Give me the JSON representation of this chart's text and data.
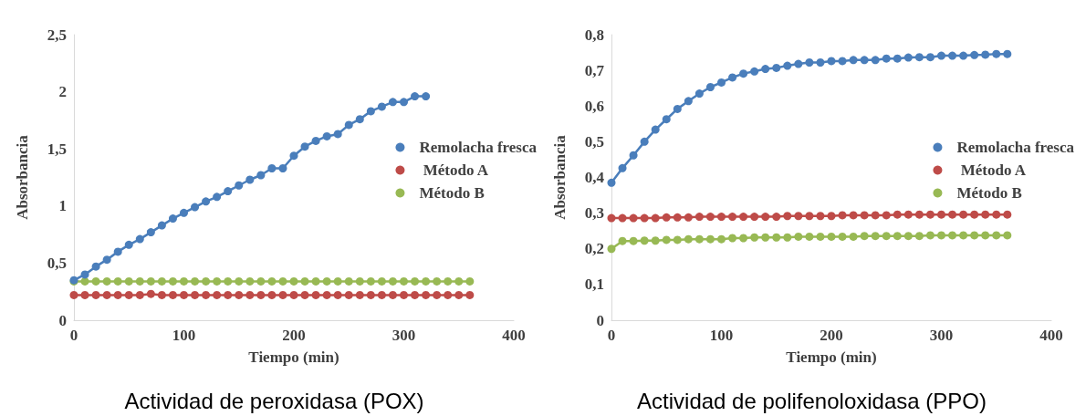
{
  "chart_data": [
    {
      "type": "line",
      "title": "Actividad de peroxidasa (POX)",
      "xlabel": "Tiempo (min)",
      "ylabel": "Absorbancia",
      "x": [
        0,
        10,
        20,
        30,
        40,
        50,
        60,
        70,
        80,
        90,
        100,
        110,
        120,
        130,
        140,
        150,
        160,
        170,
        180,
        190,
        200,
        210,
        220,
        230,
        240,
        250,
        260,
        270,
        280,
        290,
        300,
        310,
        320,
        330,
        340,
        350,
        360
      ],
      "xlim": [
        0,
        400
      ],
      "xticks": [
        0,
        100,
        200,
        300,
        400
      ],
      "ylim": [
        0,
        2.5
      ],
      "yticks": [
        0,
        {
          "value": 0.5,
          "label": "0,5"
        },
        1,
        {
          "value": 1.5,
          "label": "1,5"
        },
        2,
        {
          "value": 2.5,
          "label": "2,5"
        }
      ],
      "grid": false,
      "legend": "right",
      "marker": "circle",
      "line_style": "solid",
      "series": [
        {
          "name": "Remolacha fresca",
          "color": "#4a7ebb",
          "x": [
            0,
            10,
            20,
            30,
            40,
            50,
            60,
            70,
            80,
            90,
            100,
            110,
            120,
            130,
            140,
            150,
            160,
            170,
            180,
            190,
            200,
            210,
            220,
            230,
            240,
            250,
            260,
            270,
            280,
            290,
            300,
            310,
            320
          ],
          "values": [
            0.35,
            0.4,
            0.47,
            0.53,
            0.6,
            0.66,
            0.71,
            0.77,
            0.83,
            0.89,
            0.94,
            0.99,
            1.04,
            1.08,
            1.13,
            1.18,
            1.23,
            1.27,
            1.33,
            1.33,
            1.44,
            1.52,
            1.57,
            1.61,
            1.63,
            1.71,
            1.76,
            1.83,
            1.87,
            1.91,
            1.91,
            1.96,
            1.96
          ]
        },
        {
          "name": " Método A",
          "color": "#be4b48",
          "values": [
            0.22,
            0.22,
            0.22,
            0.22,
            0.22,
            0.22,
            0.22,
            0.23,
            0.22,
            0.22,
            0.22,
            0.22,
            0.22,
            0.22,
            0.22,
            0.22,
            0.22,
            0.22,
            0.22,
            0.22,
            0.22,
            0.22,
            0.22,
            0.22,
            0.22,
            0.22,
            0.22,
            0.22,
            0.22,
            0.22,
            0.22,
            0.22,
            0.22,
            0.22,
            0.22,
            0.22,
            0.22
          ]
        },
        {
          "name": "Método B",
          "color": "#98b954",
          "values": [
            0.34,
            0.34,
            0.34,
            0.34,
            0.34,
            0.34,
            0.34,
            0.34,
            0.34,
            0.34,
            0.34,
            0.34,
            0.34,
            0.34,
            0.34,
            0.34,
            0.34,
            0.34,
            0.34,
            0.34,
            0.34,
            0.34,
            0.34,
            0.34,
            0.34,
            0.34,
            0.34,
            0.34,
            0.34,
            0.34,
            0.34,
            0.34,
            0.34,
            0.34,
            0.34,
            0.34,
            0.34
          ]
        }
      ]
    },
    {
      "type": "line",
      "title": "Actividad de polifenoloxidasa (PPO)",
      "xlabel": "Tiempo (min)",
      "ylabel": "Absorbancia",
      "x": [
        0,
        10,
        20,
        30,
        40,
        50,
        60,
        70,
        80,
        90,
        100,
        110,
        120,
        130,
        140,
        150,
        160,
        170,
        180,
        190,
        200,
        210,
        220,
        230,
        240,
        250,
        260,
        270,
        280,
        290,
        300,
        310,
        320,
        330,
        340,
        350,
        360
      ],
      "xlim": [
        0,
        400
      ],
      "xticks": [
        0,
        100,
        200,
        300,
        400
      ],
      "ylim": [
        0,
        0.8
      ],
      "yticks": [
        0,
        {
          "value": 0.1,
          "label": "0,1"
        },
        {
          "value": 0.2,
          "label": "0,2"
        },
        {
          "value": 0.3,
          "label": "0,3"
        },
        {
          "value": 0.4,
          "label": "0,4"
        },
        {
          "value": 0.5,
          "label": "0,5"
        },
        {
          "value": 0.6,
          "label": "0,6"
        },
        {
          "value": 0.7,
          "label": "0,7"
        },
        {
          "value": 0.8,
          "label": "0,8"
        }
      ],
      "grid": false,
      "legend": "right",
      "marker": "circle",
      "line_style": "solid",
      "series": [
        {
          "name": "Remolacha fresca",
          "color": "#4a7ebb",
          "values": [
            0.385,
            0.426,
            0.462,
            0.5,
            0.534,
            0.563,
            0.592,
            0.614,
            0.635,
            0.653,
            0.666,
            0.68,
            0.691,
            0.697,
            0.704,
            0.707,
            0.713,
            0.718,
            0.722,
            0.722,
            0.726,
            0.726,
            0.729,
            0.729,
            0.729,
            0.733,
            0.733,
            0.736,
            0.737,
            0.737,
            0.741,
            0.741,
            0.741,
            0.743,
            0.744,
            0.746,
            0.746
          ]
        },
        {
          "name": " Método A",
          "color": "#be4b48",
          "values": [
            0.286,
            0.286,
            0.286,
            0.286,
            0.286,
            0.288,
            0.288,
            0.288,
            0.29,
            0.29,
            0.29,
            0.29,
            0.29,
            0.29,
            0.29,
            0.29,
            0.292,
            0.292,
            0.292,
            0.292,
            0.292,
            0.294,
            0.294,
            0.294,
            0.294,
            0.294,
            0.296,
            0.296,
            0.296,
            0.296,
            0.296,
            0.296,
            0.296,
            0.296,
            0.296,
            0.296,
            0.296
          ]
        },
        {
          "name": "Método B",
          "color": "#98b954",
          "values": [
            0.2,
            0.222,
            0.222,
            0.223,
            0.223,
            0.225,
            0.225,
            0.227,
            0.227,
            0.227,
            0.227,
            0.23,
            0.23,
            0.232,
            0.232,
            0.232,
            0.232,
            0.234,
            0.234,
            0.234,
            0.234,
            0.234,
            0.234,
            0.236,
            0.236,
            0.236,
            0.236,
            0.236,
            0.236,
            0.238,
            0.238,
            0.238,
            0.238,
            0.238,
            0.238,
            0.238,
            0.238
          ]
        }
      ]
    }
  ]
}
